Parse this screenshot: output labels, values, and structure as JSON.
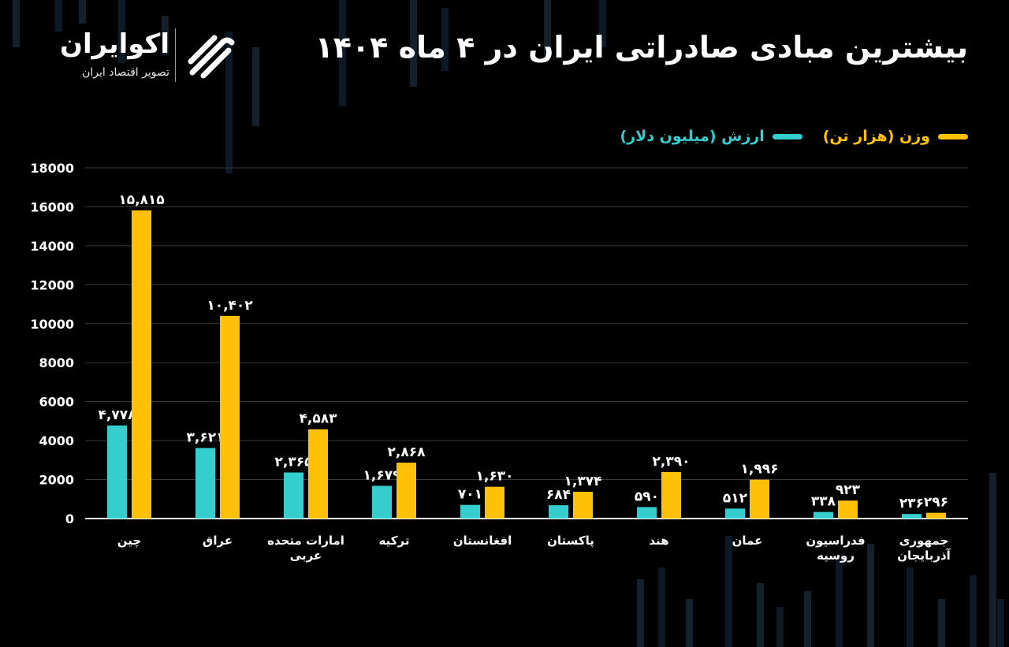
{
  "header": {
    "title": "بیشترین مبادی صادراتی ایران در ۴ ماه ۱۴۰۴",
    "brand_name": "اکوایران",
    "brand_tagline": "تصویر اقتصاد ایران"
  },
  "colors": {
    "weight": "#FFC107",
    "value": "#36CDCF",
    "grid": "#3b3b3b",
    "axis": "#ffffff",
    "background": "#000000"
  },
  "chart_data": {
    "type": "bar",
    "title": "بیشترین مبادی صادراتی ایران در ۴ ماه ۱۴۰۴",
    "xlabel": "",
    "ylabel": "",
    "ylim": [
      0,
      18000
    ],
    "yticks": [
      {
        "value": 0,
        "label": "0"
      },
      {
        "value": 2000,
        "label": "2000"
      },
      {
        "value": 4000,
        "label": "4000"
      },
      {
        "value": 6000,
        "label": "6000"
      },
      {
        "value": 8000,
        "label": "8000"
      },
      {
        "value": 10000,
        "label": "10000"
      },
      {
        "value": 12000,
        "label": "12000"
      },
      {
        "value": 14000,
        "label": "14000"
      },
      {
        "value": 16000,
        "label": "16000"
      },
      {
        "value": 18000,
        "label": "18000"
      }
    ],
    "grid": true,
    "legend_position": "top-right",
    "categories": [
      [
        "چین"
      ],
      [
        "عراق"
      ],
      [
        "امارات متحده",
        "عربی"
      ],
      [
        "ترکیه"
      ],
      [
        "افغانستان"
      ],
      [
        "پاکستان"
      ],
      [
        "هند"
      ],
      [
        "عمان"
      ],
      [
        "فدراسیون",
        "روسیه"
      ],
      [
        "جمهوری",
        "آذربایجان"
      ]
    ],
    "series": [
      {
        "name": "ارزش (میلیون دلار)",
        "key": "value",
        "values": [
          4778,
          3621,
          2365,
          1679,
          701,
          684,
          590,
          512,
          338,
          236
        ],
        "labels": [
          "۴,۷۷۸",
          "۳,۶۲۱",
          "۲,۳۶۵",
          "۱,۶۷۹",
          "۷۰۱",
          "۶۸۴",
          "۵۹۰",
          "۵۱۲",
          "۳۳۸",
          "۲۳۶"
        ]
      },
      {
        "name": "وزن (هزار تن)",
        "key": "weight",
        "values": [
          15815,
          10402,
          4583,
          2868,
          1630,
          1374,
          2390,
          1996,
          923,
          296
        ],
        "labels": [
          "۱۵,۸۱۵",
          "۱۰,۴۰۲",
          "۴,۵۸۳",
          "۲,۸۶۸",
          "۱,۶۳۰",
          "۱,۳۷۴",
          "۲,۳۹۰",
          "۱,۹۹۶",
          "۹۲۳",
          "۲۹۶"
        ]
      }
    ]
  }
}
